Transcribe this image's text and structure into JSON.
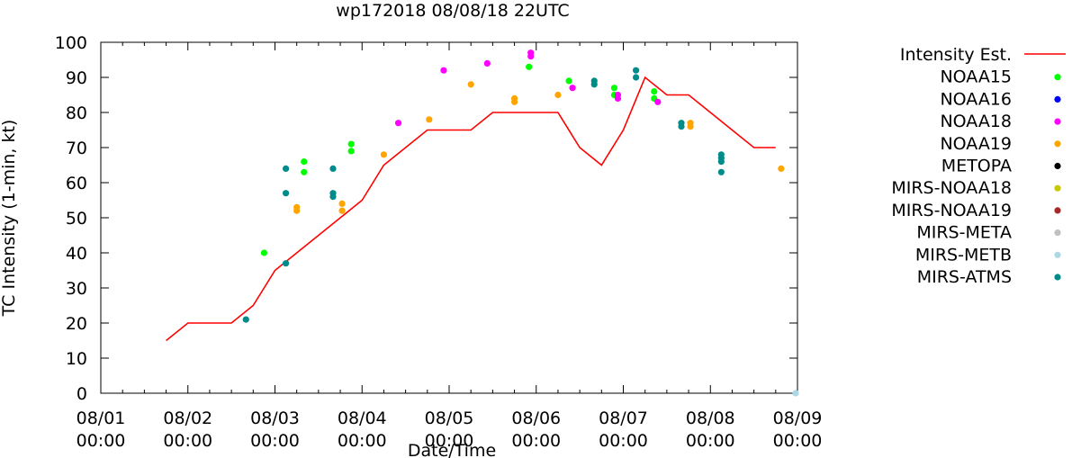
{
  "chart_data": {
    "type": "scatter",
    "title": "wp172018 08/08/18 22UTC",
    "xlabel": "Date/Time",
    "ylabel": "TC Intensity (1-min, kt)",
    "ylim": [
      0,
      100
    ],
    "yticks": [
      0,
      10,
      20,
      30,
      40,
      50,
      60,
      70,
      80,
      90,
      100
    ],
    "xlim": [
      "2018-08-01T00:00",
      "2018-08-09T00:00"
    ],
    "xticks": [
      {
        "x": "2018-08-01T00:00",
        "date": "08/01",
        "time": "00:00"
      },
      {
        "x": "2018-08-02T00:00",
        "date": "08/02",
        "time": "00:00"
      },
      {
        "x": "2018-08-03T00:00",
        "date": "08/03",
        "time": "00:00"
      },
      {
        "x": "2018-08-04T00:00",
        "date": "08/04",
        "time": "00:00"
      },
      {
        "x": "2018-08-05T00:00",
        "date": "08/05",
        "time": "00:00"
      },
      {
        "x": "2018-08-06T00:00",
        "date": "08/06",
        "time": "00:00"
      },
      {
        "x": "2018-08-07T00:00",
        "date": "08/07",
        "time": "00:00"
      },
      {
        "x": "2018-08-08T00:00",
        "date": "08/08",
        "time": "00:00"
      },
      {
        "x": "2018-08-09T00:00",
        "date": "08/09",
        "time": "00:00"
      }
    ],
    "grid": false,
    "legend_position": "outside-right",
    "series": [
      {
        "name": "Intensity Est.",
        "kind": "line",
        "color": "#ff0000",
        "points": [
          [
            "2018-08-01T18:00",
            15
          ],
          [
            "2018-08-02T00:00",
            20
          ],
          [
            "2018-08-02T12:00",
            20
          ],
          [
            "2018-08-02T18:00",
            25
          ],
          [
            "2018-08-03T00:00",
            35
          ],
          [
            "2018-08-03T06:00",
            40
          ],
          [
            "2018-08-03T12:00",
            45
          ],
          [
            "2018-08-03T18:00",
            50
          ],
          [
            "2018-08-04T00:00",
            55
          ],
          [
            "2018-08-04T06:00",
            65
          ],
          [
            "2018-08-04T12:00",
            70
          ],
          [
            "2018-08-04T18:00",
            75
          ],
          [
            "2018-08-05T00:00",
            75
          ],
          [
            "2018-08-05T06:00",
            75
          ],
          [
            "2018-08-05T12:00",
            80
          ],
          [
            "2018-08-05T18:00",
            80
          ],
          [
            "2018-08-06T00:00",
            80
          ],
          [
            "2018-08-06T06:00",
            80
          ],
          [
            "2018-08-06T12:00",
            70
          ],
          [
            "2018-08-06T18:00",
            65
          ],
          [
            "2018-08-07T00:00",
            75
          ],
          [
            "2018-08-07T06:00",
            90
          ],
          [
            "2018-08-07T12:00",
            85
          ],
          [
            "2018-08-07T18:00",
            85
          ],
          [
            "2018-08-08T00:00",
            80
          ],
          [
            "2018-08-08T06:00",
            75
          ],
          [
            "2018-08-08T12:00",
            70
          ],
          [
            "2018-08-08T18:00",
            70
          ]
        ]
      },
      {
        "name": "NOAA15",
        "kind": "points",
        "color": "#00ff00",
        "points": [
          [
            "2018-08-02T21:00",
            40
          ],
          [
            "2018-08-03T08:00",
            66
          ],
          [
            "2018-08-03T08:00",
            63
          ],
          [
            "2018-08-03T21:00",
            71
          ],
          [
            "2018-08-03T21:00",
            69
          ],
          [
            "2018-08-05T22:00",
            93
          ],
          [
            "2018-08-06T09:00",
            89
          ],
          [
            "2018-08-06T21:30",
            87
          ],
          [
            "2018-08-06T21:30",
            85
          ],
          [
            "2018-08-07T08:30",
            86
          ],
          [
            "2018-08-07T08:30",
            84
          ]
        ]
      },
      {
        "name": "NOAA16",
        "kind": "points",
        "color": "#0000ff",
        "points": []
      },
      {
        "name": "NOAA18",
        "kind": "points",
        "color": "#ff00ff",
        "points": [
          [
            "2018-08-04T10:00",
            77
          ],
          [
            "2018-08-04T22:30",
            92
          ],
          [
            "2018-08-05T10:30",
            94
          ],
          [
            "2018-08-05T22:30",
            97
          ],
          [
            "2018-08-05T22:30",
            96
          ],
          [
            "2018-08-06T10:00",
            87
          ],
          [
            "2018-08-06T22:30",
            85
          ],
          [
            "2018-08-06T22:30",
            84
          ],
          [
            "2018-08-07T09:30",
            83
          ]
        ]
      },
      {
        "name": "NOAA19",
        "kind": "points",
        "color": "#ffa500",
        "points": [
          [
            "2018-08-03T06:00",
            53
          ],
          [
            "2018-08-03T06:00",
            52
          ],
          [
            "2018-08-03T18:30",
            54
          ],
          [
            "2018-08-03T18:30",
            52
          ],
          [
            "2018-08-04T06:00",
            68
          ],
          [
            "2018-08-04T18:30",
            78
          ],
          [
            "2018-08-05T06:00",
            88
          ],
          [
            "2018-08-05T18:00",
            84
          ],
          [
            "2018-08-05T18:00",
            83
          ],
          [
            "2018-08-06T06:00",
            85
          ],
          [
            "2018-08-07T18:30",
            77
          ],
          [
            "2018-08-07T18:30",
            76
          ],
          [
            "2018-08-08T19:30",
            64
          ]
        ]
      },
      {
        "name": "METOPA",
        "kind": "points",
        "color": "#000000",
        "points": []
      },
      {
        "name": "MIRS-NOAA18",
        "kind": "points",
        "color": "#c8c800",
        "points": []
      },
      {
        "name": "MIRS-NOAA19",
        "kind": "points",
        "color": "#a52a2a",
        "points": []
      },
      {
        "name": "MIRS-META",
        "kind": "points",
        "color": "#c0c0c0",
        "points": []
      },
      {
        "name": "MIRS-METB",
        "kind": "points",
        "color": "#add8e6",
        "points": [
          [
            "2018-08-08T23:30",
            0
          ]
        ]
      },
      {
        "name": "MIRS-ATMS",
        "kind": "points",
        "color": "#008b8b",
        "points": [
          [
            "2018-08-02T16:00",
            21
          ],
          [
            "2018-08-03T03:00",
            64
          ],
          [
            "2018-08-03T03:00",
            57
          ],
          [
            "2018-08-03T03:00",
            37
          ],
          [
            "2018-08-03T16:00",
            64
          ],
          [
            "2018-08-03T16:00",
            57
          ],
          [
            "2018-08-03T16:00",
            56
          ],
          [
            "2018-08-06T16:00",
            89
          ],
          [
            "2018-08-06T16:00",
            88
          ],
          [
            "2018-08-07T03:30",
            92
          ],
          [
            "2018-08-07T03:30",
            90
          ],
          [
            "2018-08-07T16:00",
            77
          ],
          [
            "2018-08-07T16:00",
            76
          ],
          [
            "2018-08-08T03:00",
            68
          ],
          [
            "2018-08-08T03:00",
            67
          ],
          [
            "2018-08-08T03:00",
            66
          ],
          [
            "2018-08-08T03:00",
            63
          ]
        ]
      }
    ]
  }
}
